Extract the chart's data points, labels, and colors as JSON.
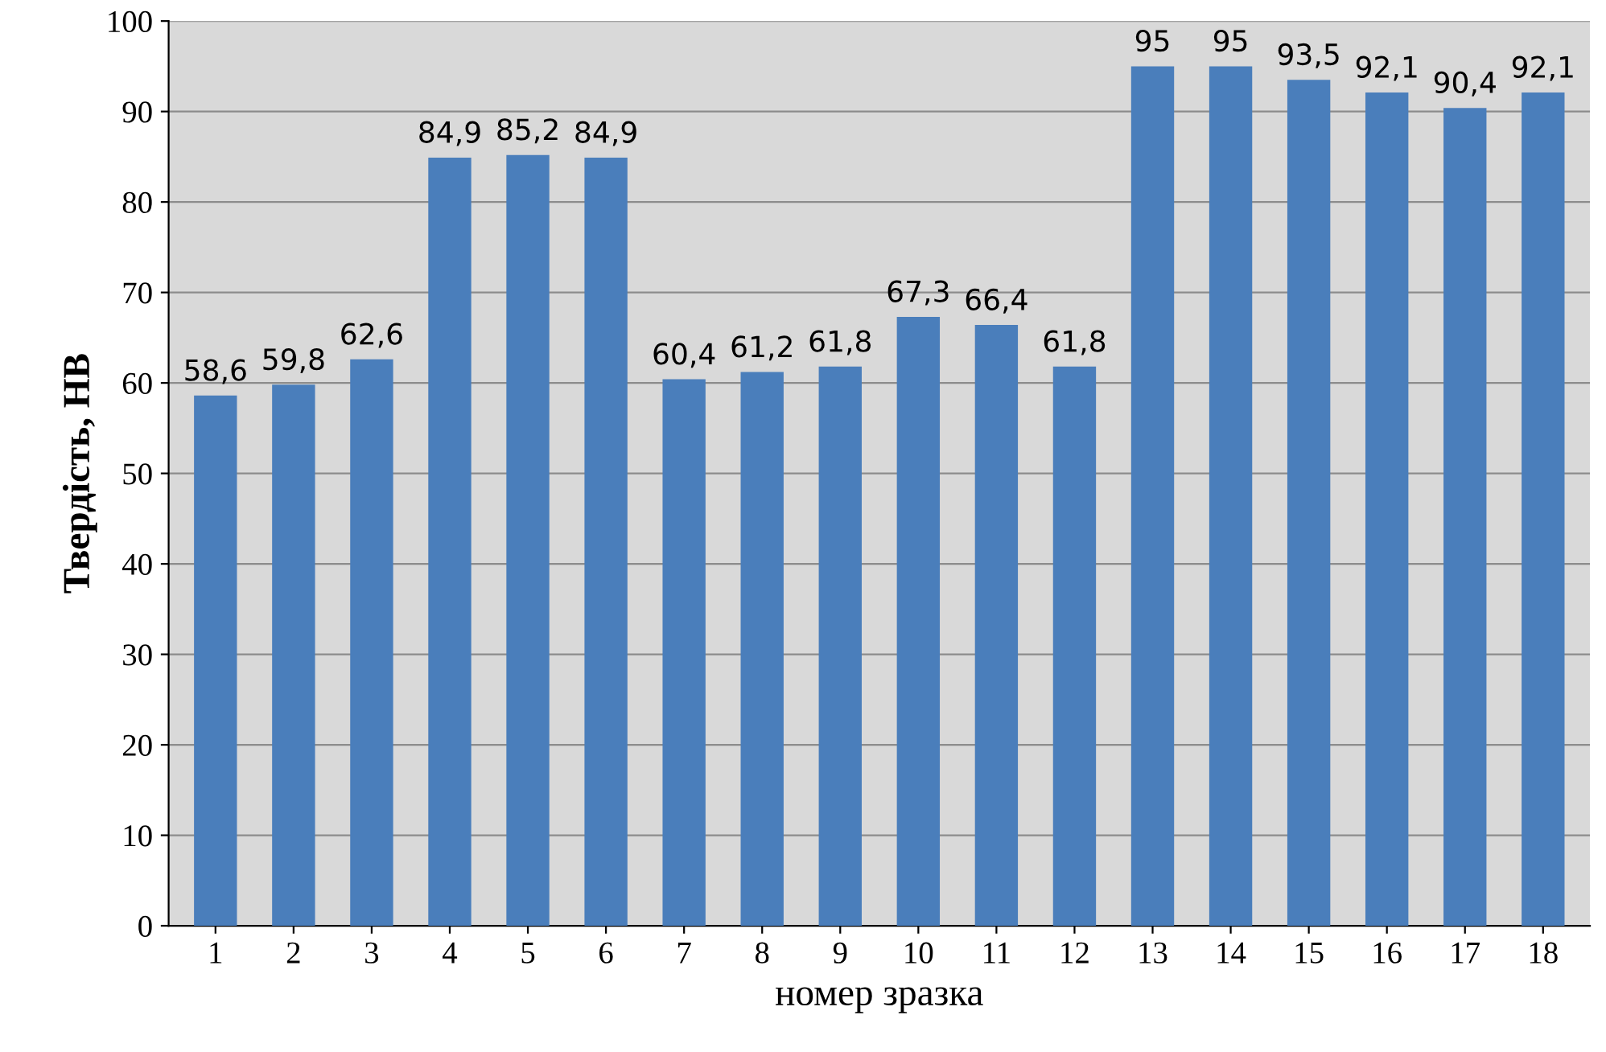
{
  "chart_data": {
    "type": "bar",
    "xlabel": "номер зразка",
    "ylabel": "Твердість, НВ",
    "categories": [
      "1",
      "2",
      "3",
      "4",
      "5",
      "6",
      "7",
      "8",
      "9",
      "10",
      "11",
      "12",
      "13",
      "14",
      "15",
      "16",
      "17",
      "18"
    ],
    "values": [
      58.6,
      59.8,
      62.6,
      84.9,
      85.2,
      84.9,
      60.4,
      61.2,
      61.8,
      67.3,
      66.4,
      61.8,
      95,
      95,
      93.5,
      92.1,
      90.4,
      92.1
    ],
    "value_labels": [
      "58,6",
      "59,8",
      "62,6",
      "84,9",
      "85,2",
      "84,9",
      "60,4",
      "61,2",
      "61,8",
      "67,3",
      "66,4",
      "61,8",
      "95",
      "95",
      "93,5",
      "92,1",
      "90,4",
      "92,1"
    ],
    "color": "#4a7ebb",
    "ylim": [
      0,
      100
    ],
    "yticks": [
      0,
      10,
      20,
      30,
      40,
      50,
      60,
      70,
      80,
      90,
      100
    ],
    "grid": "y"
  }
}
